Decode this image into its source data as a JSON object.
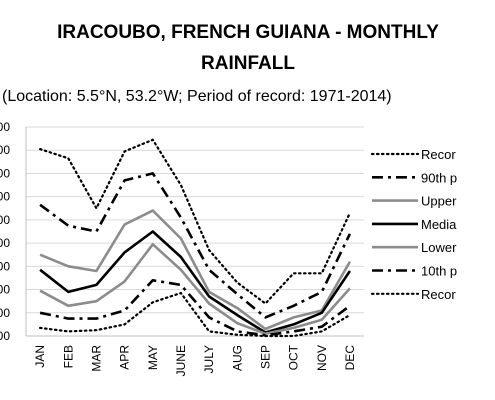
{
  "chart_data": {
    "type": "line",
    "title_line1": "IRACOUBO, FRENCH GUIANA - MONTHLY",
    "title_line2": "RAINFALL",
    "subtitle": "(Location: 5.5°N, 53.2°W; Period of record: 1971-2014)",
    "categories": [
      "JAN",
      "FEB",
      "MAR",
      "APR",
      "MAY",
      "JUNE",
      "JULY",
      "AUG",
      "SEP",
      "OCT",
      "NOV",
      "DEC"
    ],
    "ylim": [
      0,
      900
    ],
    "ytick_labels": [
      "00",
      "00",
      "00",
      "00",
      "00",
      "00",
      "00",
      "00",
      "00",
      "00"
    ],
    "grid": true,
    "legend_position": "right",
    "series": [
      {
        "name": "Recor",
        "style": "dotted",
        "color": "#000000",
        "width": 2.2,
        "values": [
          805,
          765,
          550,
          795,
          845,
          650,
          370,
          230,
          140,
          270,
          270,
          530
        ]
      },
      {
        "name": "90th p",
        "style": "dashdot",
        "color": "#000000",
        "width": 2.6,
        "values": [
          565,
          475,
          450,
          670,
          700,
          510,
          285,
          180,
          80,
          130,
          190,
          440
        ]
      },
      {
        "name": "Upper",
        "style": "solid",
        "color": "#8c8c8c",
        "width": 2.6,
        "values": [
          350,
          300,
          280,
          480,
          540,
          420,
          190,
          120,
          30,
          80,
          110,
          320
        ]
      },
      {
        "name": "Media",
        "style": "solid",
        "color": "#000000",
        "width": 2.6,
        "values": [
          285,
          190,
          220,
          360,
          450,
          340,
          170,
          90,
          15,
          50,
          100,
          280
        ]
      },
      {
        "name": "Lower",
        "style": "solid",
        "color": "#8c8c8c",
        "width": 2.6,
        "values": [
          195,
          130,
          150,
          235,
          395,
          285,
          140,
          55,
          10,
          35,
          70,
          205
        ]
      },
      {
        "name": "10th p",
        "style": "dashdot",
        "color": "#000000",
        "width": 2.6,
        "values": [
          100,
          75,
          75,
          110,
          240,
          220,
          80,
          20,
          3,
          20,
          40,
          130
        ]
      },
      {
        "name": "Recor",
        "style": "dotted",
        "color": "#000000",
        "width": 2.2,
        "values": [
          35,
          20,
          25,
          50,
          145,
          185,
          20,
          5,
          0,
          0,
          20,
          90
        ]
      }
    ]
  }
}
